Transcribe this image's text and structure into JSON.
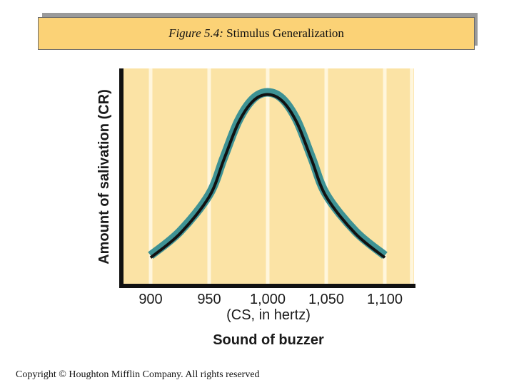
{
  "figure": {
    "label": "Figure 5.4:",
    "title": "Stimulus Generalization"
  },
  "chart_data": {
    "type": "line",
    "title": "Figure 5.4: Stimulus Generalization",
    "xlabel": "(CS, in hertz)",
    "xlabel_title": "Sound of buzzer",
    "ylabel": "Amount of salivation (CR)",
    "x_ticks": [
      900,
      950,
      1000,
      1050,
      1100
    ],
    "x_tick_labels": [
      "900",
      "950",
      "1,000",
      "1,050",
      "1,100"
    ],
    "xlim": [
      875,
      1125
    ],
    "ylim": [
      0,
      100
    ],
    "grid": true,
    "series": [
      {
        "name": "Salivation",
        "x": [
          900,
          925,
          950,
          962.5,
          975,
          987.5,
          1000,
          1012.5,
          1025,
          1037.5,
          1050,
          1075,
          1100
        ],
        "y": [
          14,
          25,
          42,
          59,
          76,
          86,
          89,
          86,
          76,
          59,
          42,
          25,
          14
        ]
      }
    ],
    "colors": {
      "plot_background": "#fbe3a5",
      "gridline": "#fff6dc",
      "curve_outer": "#3e9294",
      "curve_inner": "#111111",
      "axis": "#111111"
    }
  },
  "footer": {
    "copyright": "Copyright © Houghton Mifflin Company.  All rights reserved"
  }
}
